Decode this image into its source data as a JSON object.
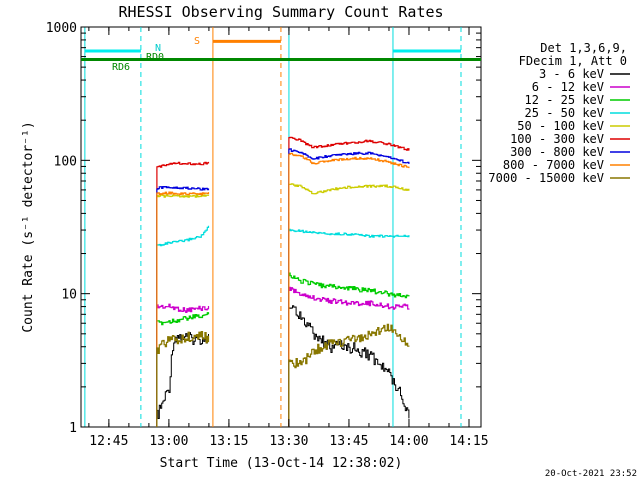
{
  "chart_data": {
    "type": "line",
    "title": "RHESSI Observing Summary Count Rates",
    "xlabel": "Start Time (13-Oct-14 12:38:02)",
    "ylabel": "Count Rate (s⁻¹ detector⁻¹)",
    "yscale": "log",
    "ylim": [
      1,
      1000
    ],
    "xlim": [
      "12:38:02",
      "14:18:00"
    ],
    "x_ticks": [
      "12:45",
      "13:00",
      "13:15",
      "13:30",
      "13:45",
      "14:00",
      "14:15"
    ],
    "y_ticks": [
      "1",
      "10",
      "100",
      "1000"
    ],
    "timestamp": "20-Oct-2021 23:52",
    "legend_header": [
      "Det 1,3,6,9,",
      "FDecim 1, Att 0"
    ],
    "series": [
      {
        "name": "3 - 6 keV",
        "color": "#000000",
        "segments": [
          {
            "t": [
              "12:57",
              "13:00",
              "13:01",
              "13:02",
              "13:05",
              "13:08",
              "13:10"
            ],
            "v": [
              1.2,
              2.0,
              4.5,
              4.8,
              4.6,
              4.6,
              4.7
            ]
          },
          {
            "t": [
              "13:30",
              "13:33",
              "13:36",
              "13:40",
              "13:45",
              "13:50",
              "13:55",
              "13:58",
              "14:00"
            ],
            "v": [
              8.0,
              7.0,
              5.0,
              4.0,
              4.0,
              3.5,
              2.5,
              1.8,
              1.2
            ]
          }
        ]
      },
      {
        "name": "6 - 12 keV",
        "color": "#cc00cc",
        "segments": [
          {
            "t": [
              "12:57",
              "13:00",
              "13:04",
              "13:08",
              "13:10"
            ],
            "v": [
              8.0,
              8.0,
              7.5,
              7.8,
              7.8
            ]
          },
          {
            "t": [
              "13:30",
              "13:33",
              "13:38",
              "13:45",
              "13:50",
              "13:55",
              "14:00"
            ],
            "v": [
              11.0,
              10.0,
              9.0,
              8.5,
              8.5,
              8.0,
              8.0
            ]
          }
        ]
      },
      {
        "name": "12 - 25 keV",
        "color": "#00cc00",
        "segments": [
          {
            "t": [
              "12:57",
              "13:00",
              "13:04",
              "13:08",
              "13:10"
            ],
            "v": [
              6.0,
              6.2,
              6.5,
              6.8,
              7.0
            ]
          },
          {
            "t": [
              "13:30",
              "13:33",
              "13:38",
              "13:45",
              "13:50",
              "13:55",
              "14:00"
            ],
            "v": [
              14.0,
              12.5,
              11.5,
              11.0,
              10.5,
              10.0,
              9.5
            ]
          }
        ]
      },
      {
        "name": "25 - 50 keV",
        "color": "#00dddd",
        "segments": [
          {
            "t": [
              "12:57",
              "13:00",
              "13:04",
              "13:08",
              "13:10"
            ],
            "v": [
              23,
              24,
              25,
              27,
              32
            ]
          },
          {
            "t": [
              "13:30",
              "13:35",
              "13:40",
              "13:45",
              "13:50",
              "13:55",
              "14:00"
            ],
            "v": [
              30,
              29,
              28,
              28,
              27,
              27,
              27
            ]
          }
        ]
      },
      {
        "name": "50 - 100 keV",
        "color": "#cccc00",
        "segments": [
          {
            "t": [
              "12:57",
              "13:00",
              "13:04",
              "13:08",
              "13:10"
            ],
            "v": [
              54,
              54,
              54,
              54,
              55
            ]
          },
          {
            "t": [
              "13:30",
              "13:33",
              "13:36",
              "13:40",
              "13:45",
              "13:50",
              "13:55",
              "14:00"
            ],
            "v": [
              66,
              64,
              56,
              60,
              63,
              64,
              64,
              60
            ]
          }
        ]
      },
      {
        "name": "100 - 300 keV",
        "color": "#dd0000",
        "segments": [
          {
            "t": [
              "12:57",
              "13:00",
              "13:04",
              "13:08",
              "13:10"
            ],
            "v": [
              88,
              95,
              95,
              94,
              96
            ]
          },
          {
            "t": [
              "13:30",
              "13:33",
              "13:36",
              "13:40",
              "13:45",
              "13:50",
              "13:55",
              "14:00"
            ],
            "v": [
              150,
              140,
              125,
              130,
              135,
              140,
              132,
              120
            ]
          }
        ]
      },
      {
        "name": "300 - 800 keV",
        "color": "#0000dd",
        "segments": [
          {
            "t": [
              "12:57",
              "13:00",
              "13:04",
              "13:08",
              "13:10"
            ],
            "v": [
              62,
              63,
              62,
              61,
              61
            ]
          },
          {
            "t": [
              "13:30",
              "13:33",
              "13:36",
              "13:40",
              "13:45",
              "13:50",
              "13:55",
              "14:00"
            ],
            "v": [
              120,
              115,
              102,
              108,
              112,
              113,
              105,
              95
            ]
          }
        ]
      },
      {
        "name": "800 - 7000 keV",
        "color": "#ff8000",
        "segments": [
          {
            "t": [
              "12:57",
              "13:00",
              "13:04",
              "13:08",
              "13:10"
            ],
            "v": [
              56,
              57,
              56,
              56,
              57
            ]
          },
          {
            "t": [
              "13:30",
              "13:33",
              "13:36",
              "13:40",
              "13:45",
              "13:50",
              "13:55",
              "14:00"
            ],
            "v": [
              112,
              108,
              95,
              100,
              103,
              104,
              97,
              88
            ]
          }
        ]
      },
      {
        "name": "7000 - 15000 keV",
        "color": "#887700",
        "segments": [
          {
            "t": [
              "12:57",
              "13:00",
              "13:04",
              "13:08",
              "13:10"
            ],
            "v": [
              3.8,
              4.5,
              4.7,
              4.8,
              4.6
            ]
          },
          {
            "t": [
              "13:30",
              "13:33",
              "13:38",
              "13:45",
              "13:50",
              "13:55",
              "14:00"
            ],
            "v": [
              3.0,
              3.0,
              4.0,
              4.5,
              5.0,
              5.5,
              4.0
            ]
          }
        ]
      }
    ],
    "markers": {
      "night_label": "N",
      "saa_label": "S",
      "decim_labels": [
        "RD0",
        "RD6"
      ],
      "cyan_solid": [
        "12:39",
        "13:30",
        "13:56"
      ],
      "cyan_dashed": [
        "12:53",
        "14:13"
      ],
      "orange_solid": [
        "13:11"
      ],
      "orange_dashed": [
        "13:28"
      ],
      "bars": [
        {
          "color": "#00eeee",
          "y": 660,
          "from": "12:39",
          "to": "12:53"
        },
        {
          "color": "#00eeee",
          "y": 660,
          "from": "13:56",
          "to": "14:13"
        },
        {
          "color": "#ff8000",
          "y": 780,
          "from": "13:11",
          "to": "13:28"
        },
        {
          "color": "#008800",
          "y": 570,
          "from": "12:38:02",
          "to": "14:18"
        }
      ]
    }
  }
}
